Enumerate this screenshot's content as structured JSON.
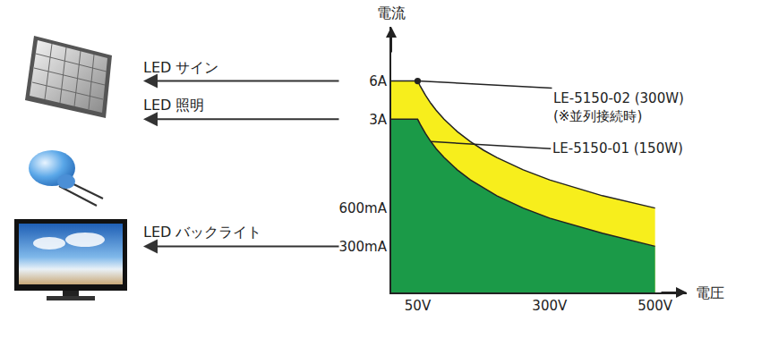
{
  "chart_data": {
    "type": "area",
    "xlabel": "電圧",
    "ylabel": "電流",
    "x": [
      0,
      50,
      55,
      60,
      65,
      75,
      85,
      100,
      125,
      150,
      175,
      200,
      250,
      300,
      400,
      500
    ],
    "series": [
      {
        "name": "LE-5150-02 (300W)",
        "annotation": "(※並列接続時)",
        "color": "#f7ee1c",
        "values": [
          6,
          6,
          5.45,
          5,
          4.62,
          4,
          3.53,
          3,
          2.4,
          2,
          1.71,
          1.5,
          1.2,
          1,
          0.75,
          0.6
        ]
      },
      {
        "name": "LE-5150-01 (150W)",
        "color": "#1b9a48",
        "values": [
          3,
          3,
          2.73,
          2.5,
          2.31,
          2,
          1.76,
          1.5,
          1.2,
          1,
          0.86,
          0.75,
          0.6,
          0.5,
          0.38,
          0.3
        ]
      }
    ],
    "xlim": [
      0,
      560
    ],
    "xticks": [
      {
        "value": 50,
        "label": "50V"
      },
      {
        "value": 300,
        "label": "300V"
      },
      {
        "value": 500,
        "label": "500V"
      }
    ],
    "ylim": [
      0.13,
      16
    ],
    "yticks": [
      {
        "value": 0.3,
        "label": "300mA"
      },
      {
        "value": 0.6,
        "label": "600mA"
      },
      {
        "value": 3,
        "label": "3A"
      },
      {
        "value": 6,
        "label": "6A"
      }
    ],
    "log": "y",
    "grid": false,
    "applications": [
      {
        "label": "LED サイン",
        "current": 6
      },
      {
        "label": "LED 照明",
        "current": 3
      },
      {
        "label": "LED バックライト",
        "current": 0.3
      }
    ]
  }
}
